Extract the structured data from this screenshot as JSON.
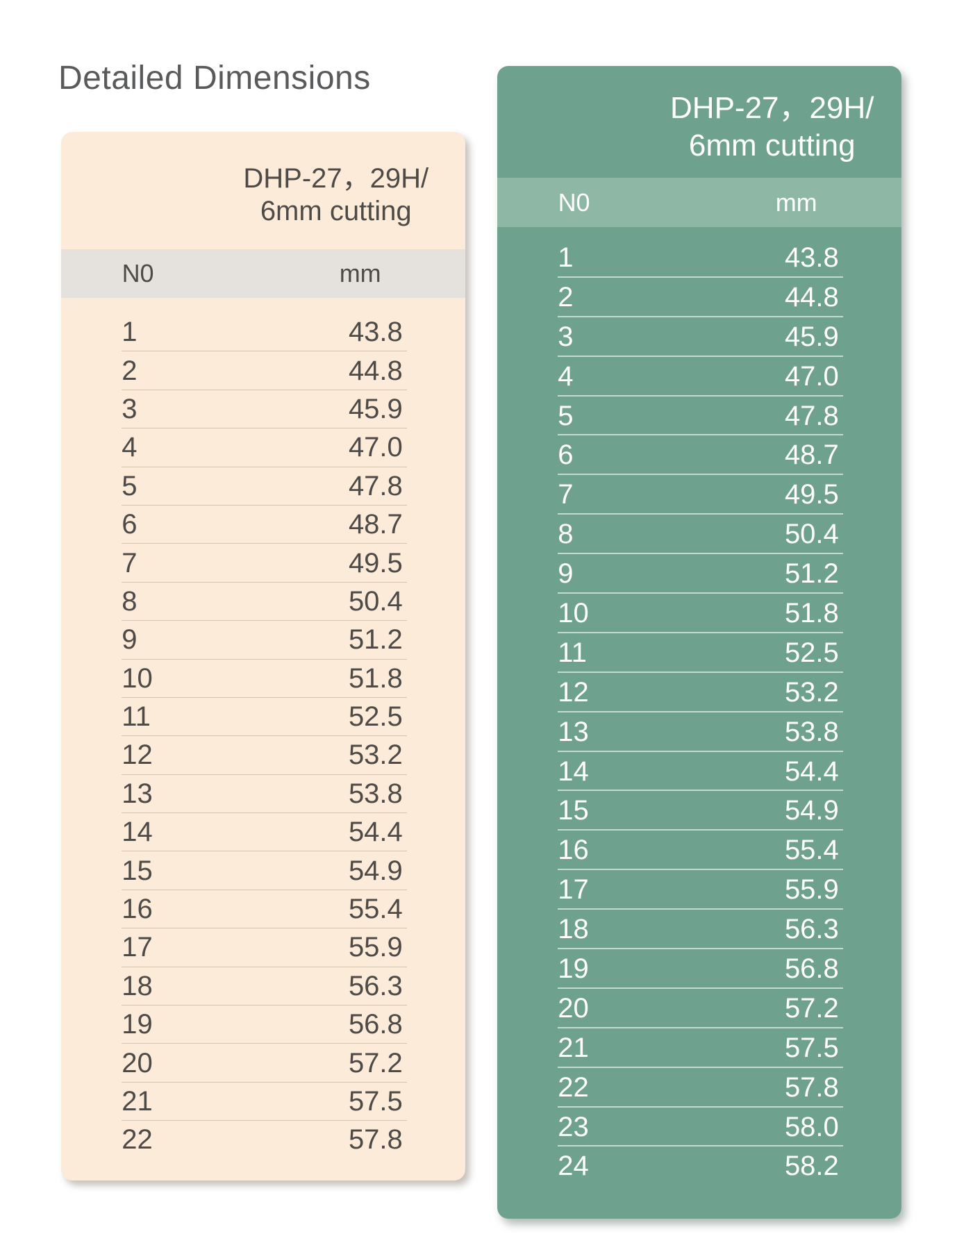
{
  "page": {
    "title": "Detailed Dimensions"
  },
  "theme": {
    "page_bg": "#ffffff",
    "title_color": "#595a5c",
    "left_bg": "#fcebd8",
    "left_band": "#e5e1dc",
    "left_text": "#4e4a47",
    "left_sep": "#96876f66",
    "right_bg": "#6fa28e",
    "right_band": "#8fb7a5",
    "right_text": "#ffffff",
    "right_sep": "#ffffff99"
  },
  "tables": [
    {
      "id": "left",
      "header_line1": "DHP-27，29H/",
      "header_line2": "6mm cutting",
      "columns": {
        "no": "N0",
        "mm": "mm"
      },
      "rows": [
        {
          "no": "1",
          "mm": "43.8"
        },
        {
          "no": "2",
          "mm": "44.8"
        },
        {
          "no": "3",
          "mm": "45.9"
        },
        {
          "no": "4",
          "mm": "47.0"
        },
        {
          "no": "5",
          "mm": "47.8"
        },
        {
          "no": "6",
          "mm": "48.7"
        },
        {
          "no": "7",
          "mm": "49.5"
        },
        {
          "no": "8",
          "mm": "50.4"
        },
        {
          "no": "9",
          "mm": "51.2"
        },
        {
          "no": "10",
          "mm": "51.8"
        },
        {
          "no": "11",
          "mm": "52.5"
        },
        {
          "no": "12",
          "mm": "53.2"
        },
        {
          "no": "13",
          "mm": "53.8"
        },
        {
          "no": "14",
          "mm": "54.4"
        },
        {
          "no": "15",
          "mm": "54.9"
        },
        {
          "no": "16",
          "mm": "55.4"
        },
        {
          "no": "17",
          "mm": "55.9"
        },
        {
          "no": "18",
          "mm": "56.3"
        },
        {
          "no": "19",
          "mm": "56.8"
        },
        {
          "no": "20",
          "mm": "57.2"
        },
        {
          "no": "21",
          "mm": "57.5"
        },
        {
          "no": "22",
          "mm": "57.8"
        }
      ]
    },
    {
      "id": "right",
      "header_line1": "DHP-27，29H/",
      "header_line2": "6mm cutting",
      "columns": {
        "no": "N0",
        "mm": "mm"
      },
      "rows": [
        {
          "no": "1",
          "mm": "43.8"
        },
        {
          "no": "2",
          "mm": "44.8"
        },
        {
          "no": "3",
          "mm": "45.9"
        },
        {
          "no": "4",
          "mm": "47.0"
        },
        {
          "no": "5",
          "mm": "47.8"
        },
        {
          "no": "6",
          "mm": "48.7"
        },
        {
          "no": "7",
          "mm": "49.5"
        },
        {
          "no": "8",
          "mm": "50.4"
        },
        {
          "no": "9",
          "mm": "51.2"
        },
        {
          "no": "10",
          "mm": "51.8"
        },
        {
          "no": "11",
          "mm": "52.5"
        },
        {
          "no": "12",
          "mm": "53.2"
        },
        {
          "no": "13",
          "mm": "53.8"
        },
        {
          "no": "14",
          "mm": "54.4"
        },
        {
          "no": "15",
          "mm": "54.9"
        },
        {
          "no": "16",
          "mm": "55.4"
        },
        {
          "no": "17",
          "mm": "55.9"
        },
        {
          "no": "18",
          "mm": "56.3"
        },
        {
          "no": "19",
          "mm": "56.8"
        },
        {
          "no": "20",
          "mm": "57.2"
        },
        {
          "no": "21",
          "mm": "57.5"
        },
        {
          "no": "22",
          "mm": "57.8"
        },
        {
          "no": "23",
          "mm": "58.0"
        },
        {
          "no": "24",
          "mm": "58.2"
        }
      ]
    }
  ]
}
